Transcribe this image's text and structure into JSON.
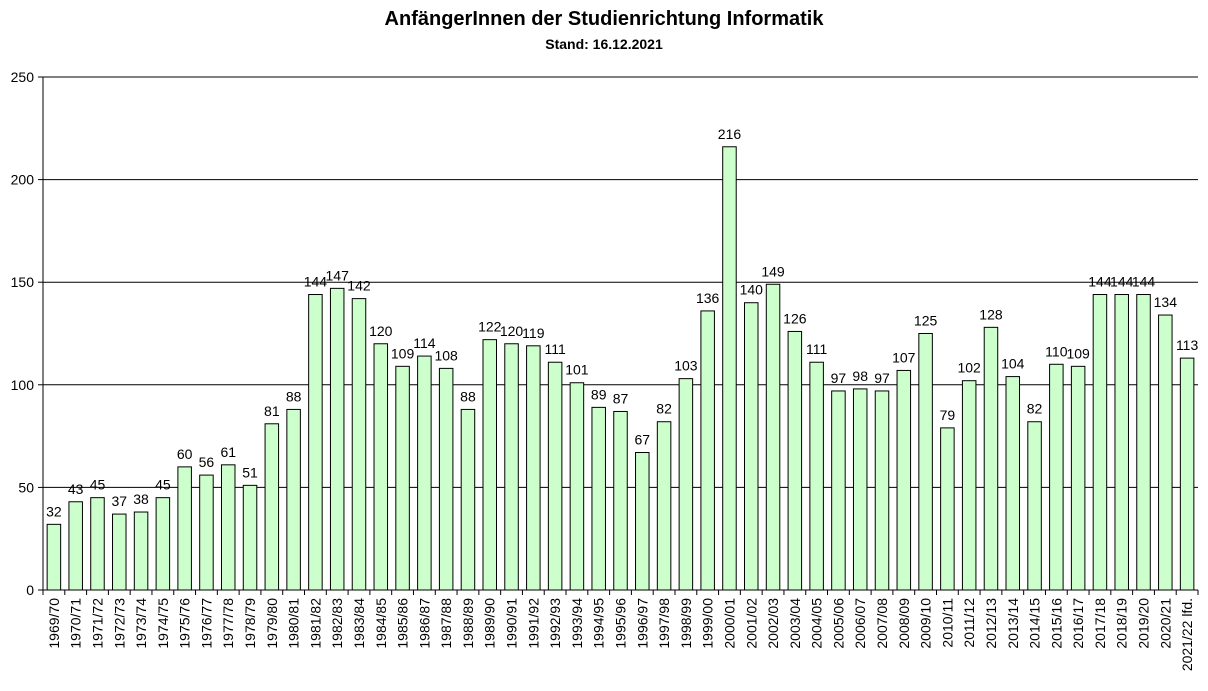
{
  "chart_data": {
    "type": "bar",
    "title": "AnfängerInnen der Studienrichtung Informatik",
    "subtitle": "Stand: 16.12.2021",
    "categories": [
      "1969/70",
      "1970/71",
      "1971/72",
      "1972/73",
      "1973/74",
      "1974/75",
      "1975/76",
      "1976/77",
      "1977/78",
      "1978/79",
      "1979/80",
      "1980/81",
      "1981/82",
      "1982/83",
      "1983/84",
      "1984/85",
      "1985/86",
      "1986/87",
      "1987/88",
      "1988/89",
      "1989/90",
      "1990/91",
      "1991/92",
      "1992/93",
      "1993/94",
      "1994/95",
      "1995/96",
      "1996/97",
      "1997/98",
      "1998/99",
      "1999/00",
      "2000/01",
      "2001/02",
      "2002/03",
      "2003/04",
      "2004/05",
      "2005/06",
      "2006/07",
      "2007/08",
      "2008/09",
      "2009/10",
      "2010/11",
      "2011/12",
      "2012/13",
      "2013/14",
      "2014/15",
      "2015/16",
      "2016/17",
      "2017/18",
      "2018/19",
      "2019/20",
      "2020/21",
      "2021/22 lfd."
    ],
    "values": [
      32,
      43,
      45,
      37,
      38,
      45,
      60,
      56,
      61,
      51,
      81,
      88,
      144,
      147,
      142,
      120,
      109,
      114,
      108,
      88,
      122,
      120,
      119,
      111,
      101,
      89,
      87,
      67,
      82,
      103,
      136,
      216,
      140,
      149,
      126,
      111,
      97,
      98,
      97,
      107,
      125,
      79,
      102,
      128,
      104,
      82,
      110,
      109,
      144,
      144,
      144,
      134,
      113
    ],
    "ylim": [
      0,
      250
    ],
    "yticks": [
      0,
      50,
      100,
      150,
      200,
      250
    ],
    "grid": true,
    "bar_color": "#ccffcc",
    "bar_stroke": "#000000"
  }
}
